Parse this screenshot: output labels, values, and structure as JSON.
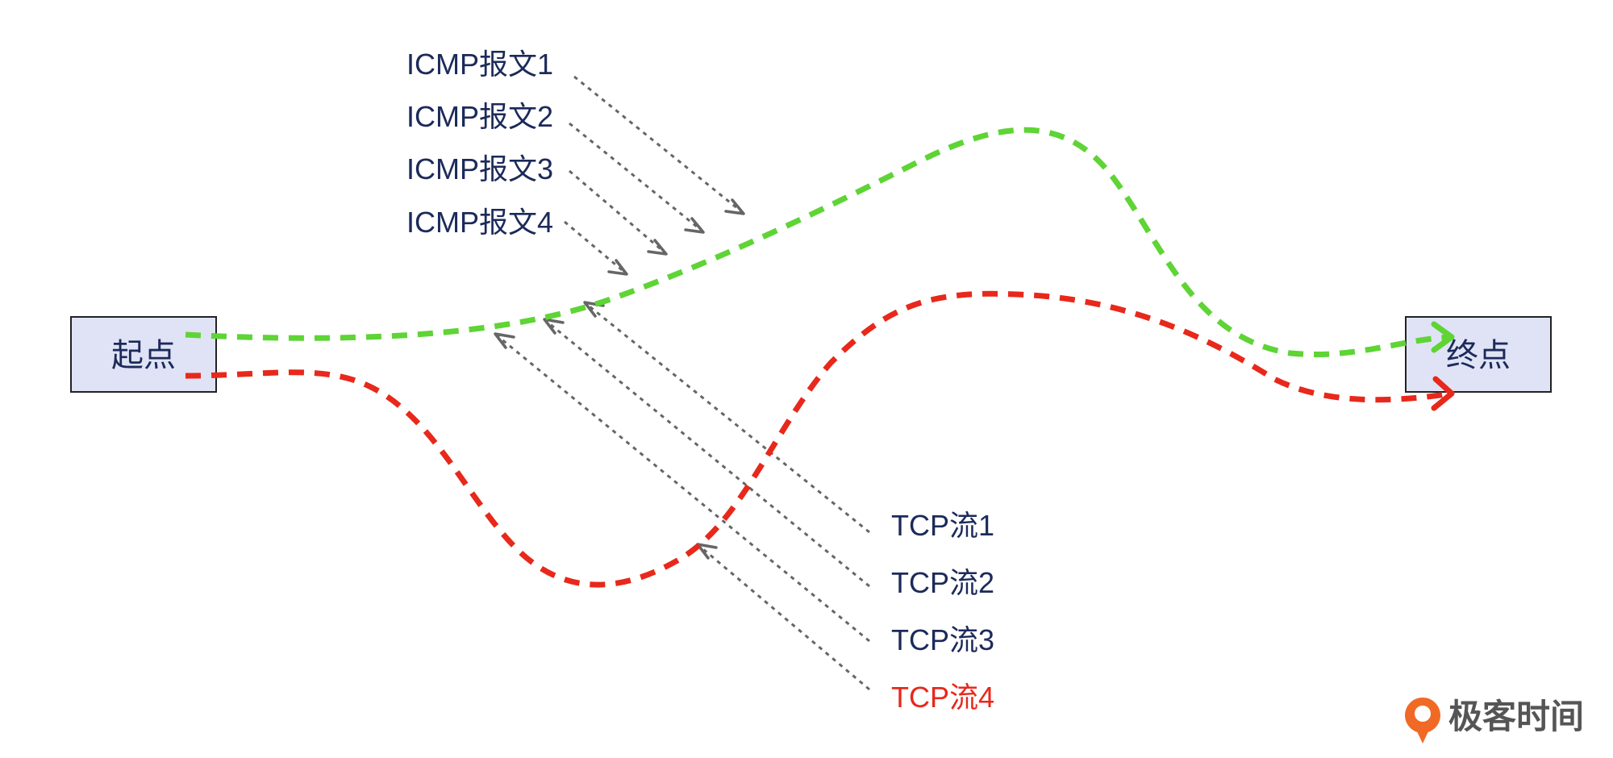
{
  "diagram": {
    "start_node": {
      "label": "起点"
    },
    "end_node": {
      "label": "终点"
    },
    "icmp_packets": [
      {
        "label": "ICMP报文1"
      },
      {
        "label": "ICMP报文2"
      },
      {
        "label": "ICMP报文3"
      },
      {
        "label": "ICMP报文4"
      }
    ],
    "tcp_flows": [
      {
        "label": "TCP流1",
        "color": "#1c2a5a"
      },
      {
        "label": "TCP流2",
        "color": "#1c2a5a"
      },
      {
        "label": "TCP流3",
        "color": "#1c2a5a"
      },
      {
        "label": "TCP流4",
        "color": "#e8281b"
      }
    ],
    "paths": [
      {
        "name": "icmp-path",
        "color": "#5ed435"
      },
      {
        "name": "tcp-path",
        "color": "#e8281b"
      }
    ]
  },
  "branding": {
    "logo_text": "极客时间",
    "logo_color": "#f06a25"
  }
}
